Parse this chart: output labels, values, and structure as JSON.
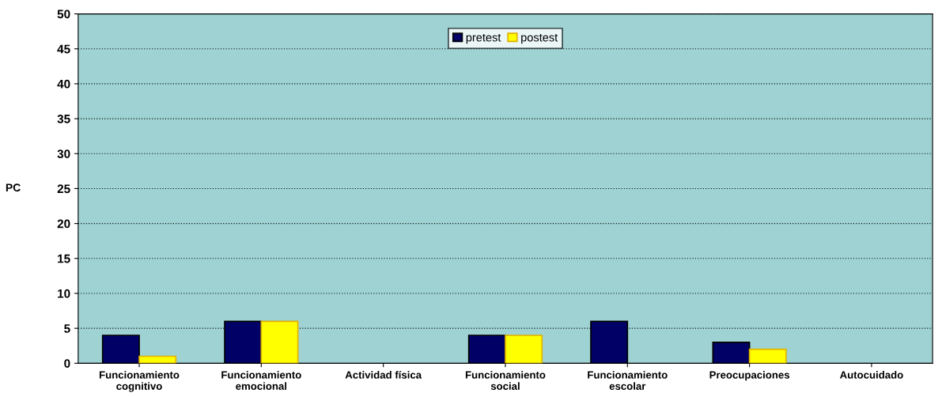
{
  "chart_data": {
    "type": "bar",
    "ylabel": "PC",
    "categories": [
      "Funcionamiento\ncognitivo",
      "Funcionamiento\nemocional",
      "Actividad física",
      "Funcionamiento\nsocial",
      "Funcionamiento\nescolar",
      "Preocupaciones",
      "Autocuidado"
    ],
    "series": [
      {
        "name": "pretest",
        "color": "#000066",
        "values": [
          4,
          6,
          0,
          4,
          6,
          3,
          0
        ]
      },
      {
        "name": "postest",
        "color": "#ffff00",
        "values": [
          1,
          6,
          0,
          4,
          0,
          2,
          0
        ]
      }
    ],
    "ylim": [
      0,
      50
    ],
    "yticks": [
      0,
      5,
      10,
      15,
      20,
      25,
      30,
      35,
      40,
      45,
      50
    ],
    "grid": "y",
    "legend": "top"
  }
}
